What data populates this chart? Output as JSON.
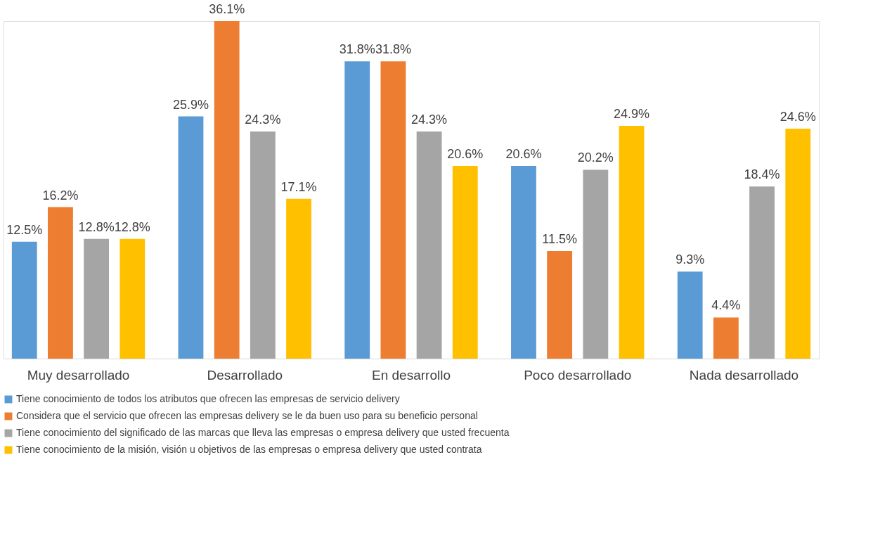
{
  "chart_data": {
    "type": "bar",
    "categories": [
      "Muy desarrollado",
      "Desarrollado",
      "En desarrollo",
      "Poco desarrollado",
      "Nada desarrollado"
    ],
    "series": [
      {
        "name": "Tiene conocimiento de todos los atributos que ofrecen las empresas de servicio delivery",
        "color": "#5b9bd5",
        "values": [
          12.5,
          25.9,
          31.8,
          20.6,
          9.3
        ],
        "value_labels": [
          "12.5%",
          "25.9%",
          "31.8%",
          "20.6%",
          "9.3%"
        ]
      },
      {
        "name": "Considera que el servicio que ofrecen las empresas delivery se le da buen uso para su beneficio personal",
        "color": "#ed7d31",
        "values": [
          16.2,
          36.1,
          31.8,
          11.5,
          4.4
        ],
        "value_labels": [
          "16.2%",
          "36.1%",
          "31.8%",
          "11.5%",
          "4.4%"
        ]
      },
      {
        "name": "Tiene conocimiento del significado de las marcas que lleva las empresas o empresa delivery que usted frecuenta",
        "color": "#a5a5a5",
        "values": [
          12.8,
          24.3,
          24.3,
          20.2,
          18.4
        ],
        "value_labels": [
          "12.8%",
          "24.3%",
          "24.3%",
          "20.2%",
          "18.4%"
        ]
      },
      {
        "name": "Tiene conocimiento de la misión, visión u objetivos de las empresas o empresa delivery que usted contrata",
        "color": "#ffc000",
        "values": [
          12.8,
          17.1,
          20.6,
          24.9,
          24.6
        ],
        "value_labels": [
          "12.8%",
          "17.1%",
          "20.6%",
          "24.9%",
          "24.6%"
        ]
      }
    ],
    "legend": "bottom",
    "grid": false
  }
}
